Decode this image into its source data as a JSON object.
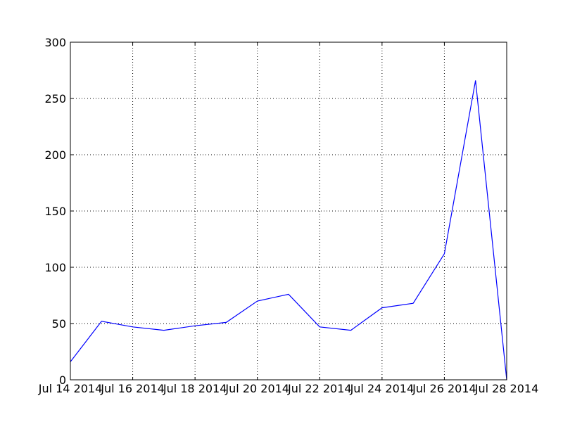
{
  "chart_data": {
    "type": "line",
    "title": "",
    "xlabel": "",
    "ylabel": "",
    "x": [
      "2014-07-14",
      "2014-07-15",
      "2014-07-16",
      "2014-07-17",
      "2014-07-18",
      "2014-07-19",
      "2014-07-20",
      "2014-07-21",
      "2014-07-22",
      "2014-07-23",
      "2014-07-24",
      "2014-07-25",
      "2014-07-26",
      "2014-07-27",
      "2014-07-28"
    ],
    "series": [
      {
        "values": [
          16,
          52,
          47,
          44,
          48,
          51,
          70,
          76,
          47,
          44,
          64,
          68,
          112,
          266,
          0
        ]
      }
    ],
    "xlim": [
      "2014-07-14",
      "2014-07-28"
    ],
    "ylim": [
      0,
      300
    ],
    "xticks": [
      "2014-07-14",
      "2014-07-16",
      "2014-07-18",
      "2014-07-20",
      "2014-07-22",
      "2014-07-24",
      "2014-07-26",
      "2014-07-28"
    ],
    "xtick_labels": [
      "Jul 14 2014",
      "Jul 16 2014",
      "Jul 18 2014",
      "Jul 20 2014",
      "Jul 22 2014",
      "Jul 24 2014",
      "Jul 26 2014",
      "Jul 28 2014"
    ],
    "yticks": [
      0,
      50,
      100,
      150,
      200,
      250,
      300
    ],
    "ytick_labels": [
      "0",
      "50",
      "100",
      "150",
      "200",
      "250",
      "300"
    ],
    "grid": true,
    "legend": "none",
    "line_color": "#0000ff"
  }
}
